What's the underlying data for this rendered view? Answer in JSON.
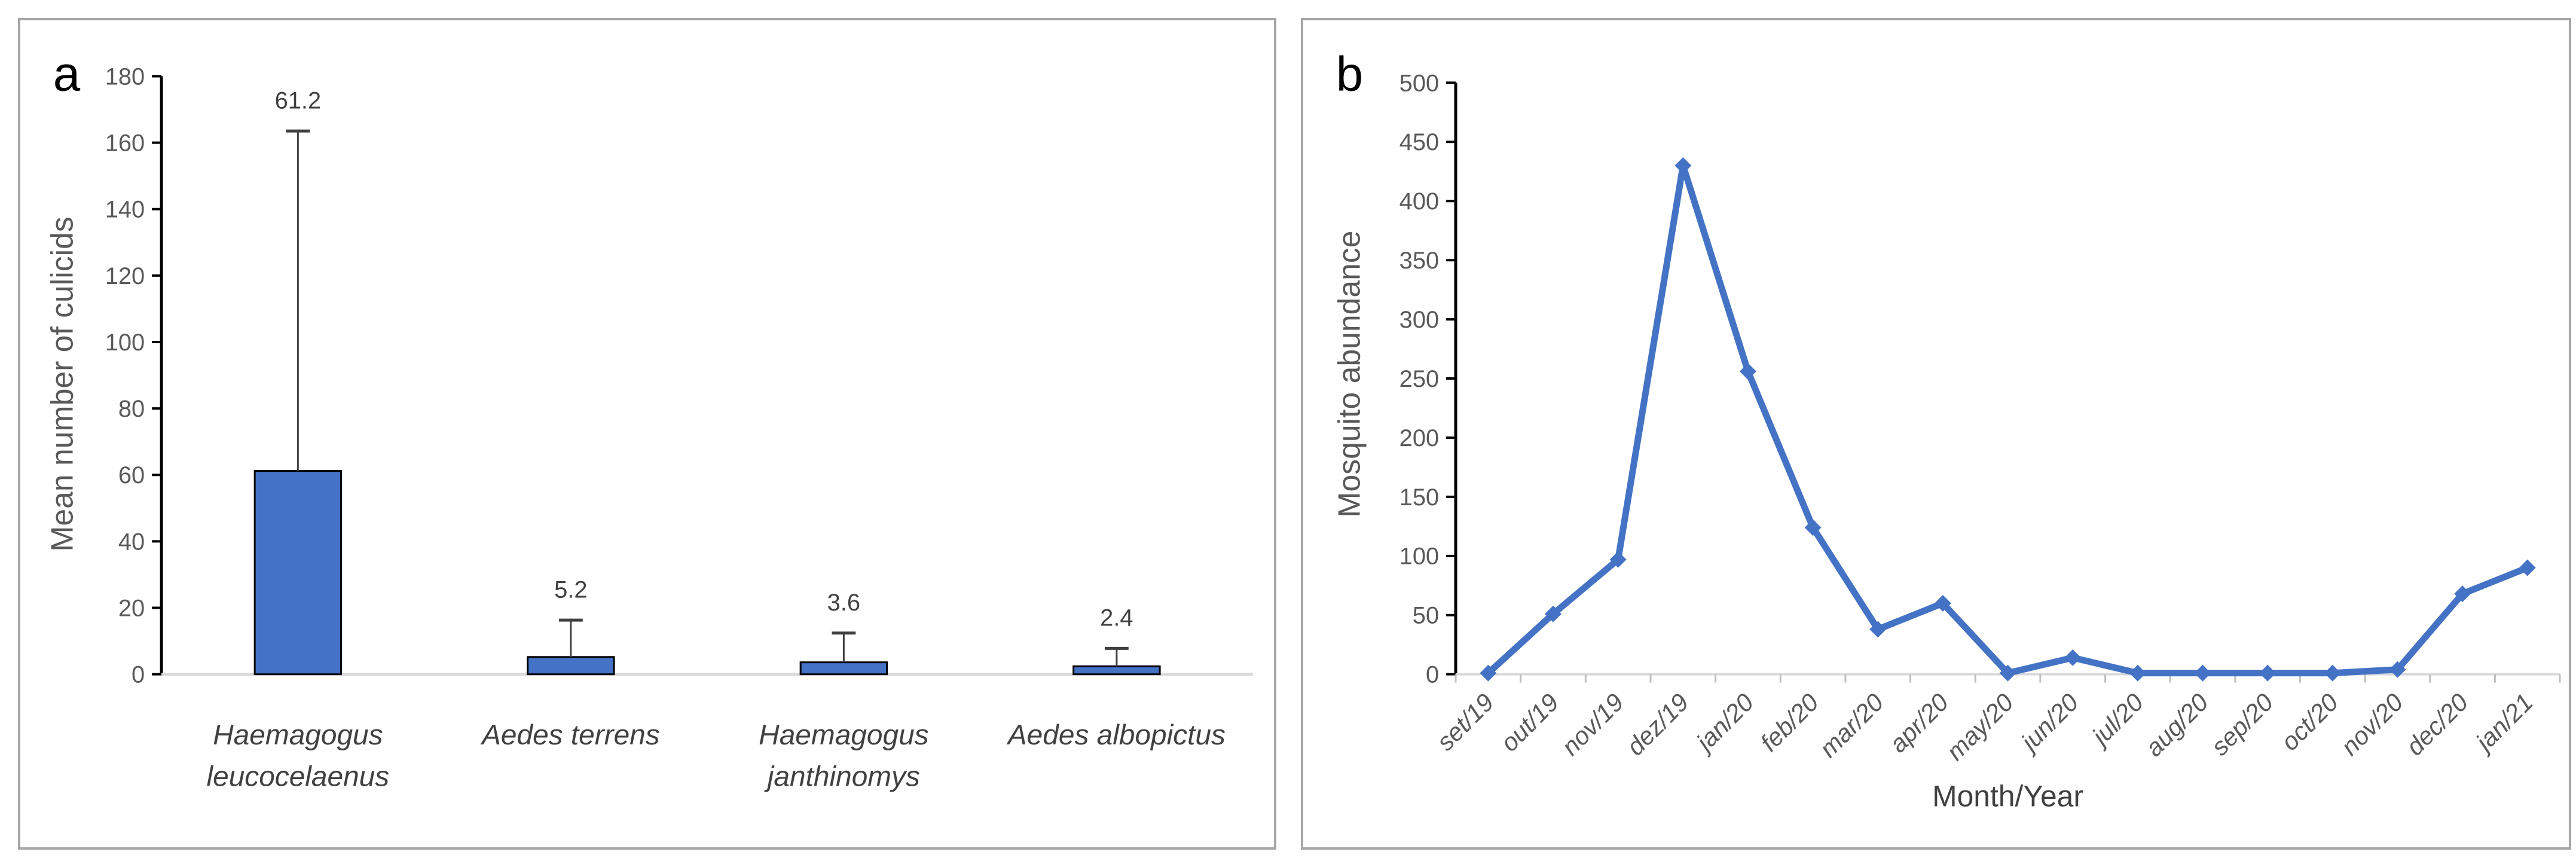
{
  "figure": {
    "background": "#ffffff",
    "panel_border_color": "#a6a6a6"
  },
  "colors": {
    "series_blue": "#4472C4",
    "bar_outline": "#000000",
    "axis_line": "#000000",
    "baseline_gray": "#d9d9d9",
    "xtick_gray": "#bfbfbf",
    "tick_text_gray": "#595959",
    "label_text_dark": "#404040",
    "error_bar": "#404040"
  },
  "chart_data": [
    {
      "panel_label": "a",
      "type": "bar",
      "title": "",
      "xlabel": "",
      "ylabel": "Mean number of culicids",
      "ylim": [
        0,
        180
      ],
      "yticks": [
        0,
        20,
        40,
        60,
        80,
        100,
        120,
        140,
        160,
        180
      ],
      "categories": [
        "Haemagogus leucocelaenus",
        "Aedes terrens",
        "Haemagogus janthinomys",
        "Aedes albopictus"
      ],
      "category_lines": [
        [
          "Haemagogus",
          "leucocelaenus"
        ],
        [
          "Aedes terrens"
        ],
        [
          "Haemagogus",
          "janthinomys"
        ],
        [
          "Aedes albopictus"
        ]
      ],
      "values": [
        61.2,
        5.2,
        3.6,
        2.4
      ],
      "data_labels": [
        "61.2",
        "5.2",
        "3.6",
        "2.4"
      ],
      "error_plus": [
        102.3,
        11.1,
        8.8,
        5.4
      ],
      "bar_color": "#4472C4",
      "grid": false,
      "legend": "none",
      "category_style": "italic"
    },
    {
      "panel_label": "b",
      "type": "line",
      "title": "",
      "xlabel": "Month/Year",
      "ylabel": "Mosquito abundance",
      "ylim": [
        0,
        500
      ],
      "yticks": [
        0,
        50,
        100,
        150,
        200,
        250,
        300,
        350,
        400,
        450,
        500
      ],
      "x": [
        "set/19",
        "out/19",
        "nov/19",
        "dez/19",
        "jan/20",
        "feb/20",
        "mar/20",
        "apr/20",
        "may/20",
        "jun/20",
        "jul/20",
        "aug/20",
        "sep/20",
        "oct/20",
        "nov/20",
        "dec/20",
        "jan/21"
      ],
      "values": [
        1,
        51,
        97,
        430,
        256,
        124,
        38,
        60,
        1,
        14,
        1,
        1,
        1,
        1,
        4,
        68,
        90
      ],
      "line_color": "#4472C4",
      "marker": "diamond",
      "grid": false,
      "legend": "none",
      "xtick_style": "italic",
      "xtick_rotation": -45
    }
  ]
}
